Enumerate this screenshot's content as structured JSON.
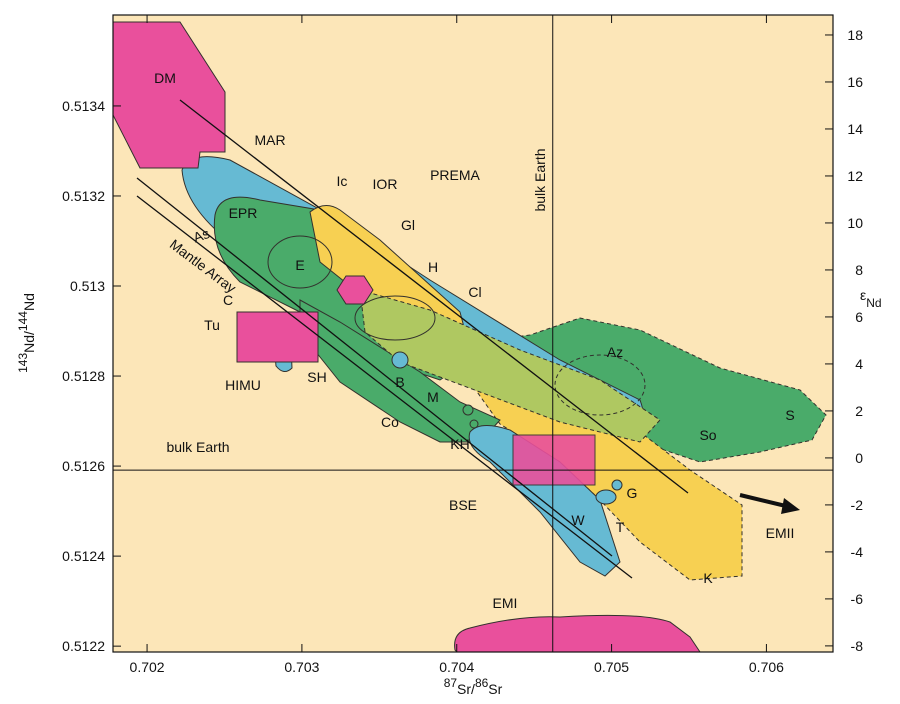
{
  "chart_data": {
    "type": "field_diagram",
    "xlabel": [
      "87",
      "Sr/",
      "86",
      "Sr"
    ],
    "ylabel": [
      "143",
      "Nd/",
      "144",
      "Nd"
    ],
    "y2label": [
      "ε",
      "Nd"
    ],
    "xlim": [
      0.70178,
      0.70643
    ],
    "xticks": [
      0.702,
      0.703,
      0.704,
      0.705,
      0.706
    ],
    "ylim": [
      0.512187,
      0.513602
    ],
    "yticks": [
      0.5122,
      0.5124,
      0.5126,
      0.5128,
      0.513,
      0.5132,
      0.5134
    ],
    "y2lim": [
      -8.26,
      18.85
    ],
    "y2ticks": [
      -8,
      -6,
      -4,
      -2,
      0,
      2,
      4,
      6,
      8,
      10,
      12,
      14,
      16,
      18
    ],
    "reference_x": 0.70462,
    "reference_y": 0.512591,
    "annotations": [
      "DM",
      "MAR",
      "EPR",
      "As",
      "Mantle Array",
      "C",
      "Tu",
      "HIMU",
      "SH",
      "Ic",
      "IOR",
      "PREMA",
      "Gl",
      "E",
      "H",
      "Cl",
      "B",
      "M",
      "Co",
      "KH",
      "bulk Earth",
      "bulk Earth",
      "Az",
      "S",
      "So",
      "BSE",
      "W",
      "T",
      "G",
      "K",
      "EMII",
      "EMI"
    ]
  }
}
